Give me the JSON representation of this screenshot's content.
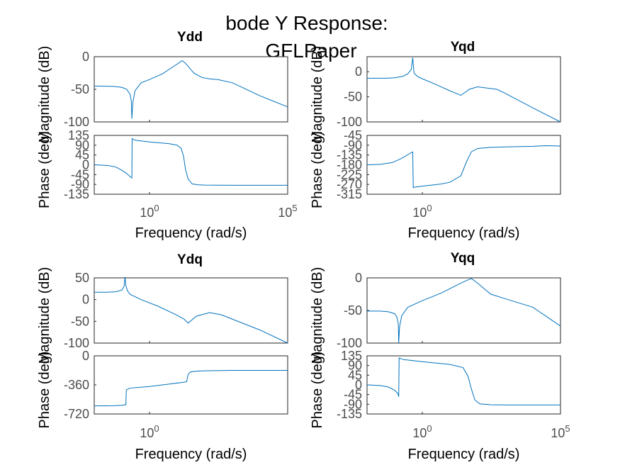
{
  "figure": {
    "title_line1": "bode Y Response:",
    "title_line2": "GFLPaper"
  },
  "chart_data": [
    {
      "type": "line",
      "title": "Ydd",
      "xlabel": "Frequency  (rad/s)",
      "x_scale": "log",
      "xlim": [
        0.01,
        100000
      ],
      "x_ticks": [
        {
          "value": 1,
          "base": "10",
          "exp": "0"
        },
        {
          "value": 100000,
          "base": "10",
          "exp": "5"
        }
      ],
      "line_color": "#0072bd",
      "magnitude": {
        "ylabel": "Magnitude (dB)",
        "ylim": [
          -100,
          0
        ],
        "yticks": [
          0,
          -50,
          -100
        ],
        "ytick_labels": [
          "0",
          "-50",
          "-100"
        ],
        "series": [
          {
            "x": [
              0.01,
              0.05,
              0.1,
              0.15,
              0.2,
              0.22,
              0.23,
              0.25,
              0.3,
              0.5,
              1,
              3,
              8,
              12,
              15,
              20,
              40,
              80,
              150,
              300,
              1000,
              10000,
              100000
            ],
            "y": [
              -45,
              -45.5,
              -47,
              -50,
              -58,
              -68,
              -95,
              -70,
              -52,
              -40,
              -35,
              -26,
              -14,
              -9,
              -6,
              -10,
              -25,
              -32,
              -34,
              -35,
              -40,
              -60,
              -77
            ]
          }
        ]
      },
      "phase": {
        "ylabel": "Phase (deg)",
        "ylim": [
          -135,
          135
        ],
        "yticks": [
          135,
          90,
          45,
          0,
          -45,
          -90,
          -135
        ],
        "ytick_labels": [
          "135",
          "90",
          "45",
          "0",
          "-45",
          "-90",
          "-135"
        ],
        "series": [
          {
            "x": [
              0.01,
              0.03,
              0.06,
              0.1,
              0.15,
              0.2,
              0.23,
              0.235,
              0.3,
              1,
              5,
              10,
              14,
              17,
              20,
              25,
              35,
              60,
              100,
              1000,
              100000
            ],
            "y": [
              0,
              -3,
              -10,
              -25,
              -40,
              -55,
              -60,
              120,
              113,
              105,
              97,
              90,
              75,
              40,
              -20,
              -65,
              -88,
              -92,
              -93,
              -94,
              -94
            ]
          }
        ]
      }
    },
    {
      "type": "line",
      "title": "Yqd",
      "xlabel": "Frequency  (rad/s)",
      "x_scale": "log",
      "xlim": [
        0.01,
        100000
      ],
      "x_ticks": [
        {
          "value": 1,
          "base": "10",
          "exp": "0"
        }
      ],
      "line_color": "#0072bd",
      "magnitude": {
        "ylabel": "Magnitude (dB)",
        "ylim": [
          -100,
          30
        ],
        "yticks": [
          0,
          -50,
          -100
        ],
        "ytick_labels": [
          "0",
          "-50",
          "-100"
        ],
        "series": [
          {
            "x": [
              0.01,
              0.05,
              0.1,
              0.2,
              0.3,
              0.4,
              0.45,
              0.48,
              0.5,
              0.55,
              0.7,
              1,
              3,
              10,
              25,
              50,
              100,
              500,
              1000,
              10000,
              100000
            ],
            "y": [
              -13,
              -13,
              -12,
              -9,
              -4,
              5,
              28,
              10,
              -2,
              -5,
              -10,
              -14,
              -25,
              -38,
              -47,
              -35,
              -30,
              -35,
              -43,
              -72,
              -100
            ]
          }
        ]
      },
      "phase": {
        "ylabel": "Phase (deg)",
        "ylim": [
          -315,
          -45
        ],
        "yticks": [
          -45,
          -90,
          -135,
          -180,
          -225,
          -270,
          -315
        ],
        "ytick_labels": [
          "-45",
          "-90",
          "-135",
          "-180",
          "-225",
          "-270",
          "-315"
        ],
        "series": [
          {
            "x": [
              0.01,
              0.03,
              0.08,
              0.15,
              0.25,
              0.35,
              0.45,
              0.47,
              0.5,
              1,
              5,
              10,
              25,
              40,
              60,
              100,
              300,
              1000,
              10000,
              30000,
              100000
            ],
            "y": [
              -180,
              -178,
              -170,
              -155,
              -140,
              -128,
              -121,
              -285,
              -283,
              -278,
              -268,
              -260,
              -230,
              -165,
              -120,
              -105,
              -100,
              -98,
              -95,
              -92,
              -94
            ]
          }
        ]
      }
    },
    {
      "type": "line",
      "title": "Ydq",
      "xlabel": "Frequency  (rad/s)",
      "x_scale": "log",
      "xlim": [
        0.01,
        100000
      ],
      "x_ticks": [
        {
          "value": 1,
          "base": "10",
          "exp": "0"
        }
      ],
      "line_color": "#0072bd",
      "magnitude": {
        "ylabel": "Magnitude (dB)",
        "ylim": [
          -100,
          50
        ],
        "yticks": [
          50,
          0,
          -50,
          -100
        ],
        "ytick_labels": [
          "50",
          "0",
          "-50",
          "-100"
        ],
        "series": [
          {
            "x": [
              0.01,
              0.03,
              0.06,
              0.1,
              0.12,
              0.13,
              0.14,
              0.16,
              0.2,
              0.5,
              2,
              8,
              18,
              25,
              50,
              150,
              400,
              1000,
              10000,
              100000
            ],
            "y": [
              17,
              17,
              18,
              22,
              30,
              52,
              32,
              20,
              12,
              0,
              -15,
              -33,
              -45,
              -54,
              -38,
              -30,
              -35,
              -45,
              -70,
              -100
            ]
          }
        ]
      },
      "phase": {
        "ylabel": "Phase (deg)",
        "ylim": [
          -720,
          0
        ],
        "yticks": [
          0,
          -360,
          -720
        ],
        "ytick_labels": [
          "0",
          "-360",
          "-720"
        ],
        "series": [
          {
            "x": [
              0.01,
              0.05,
              0.1,
              0.14,
              0.145,
              0.2,
              1,
              5,
              15,
              22,
              25,
              30,
              50,
              100,
              1000,
              10000,
              100000
            ],
            "y": [
              -620,
              -618,
              -612,
              -605,
              -420,
              -400,
              -380,
              -350,
              -330,
              -320,
              -230,
              -200,
              -190,
              -185,
              -180,
              -180,
              -180
            ]
          }
        ]
      }
    },
    {
      "type": "line",
      "title": "Yqq",
      "xlabel": "Frequency  (rad/s)",
      "x_scale": "log",
      "xlim": [
        0.01,
        100000
      ],
      "x_ticks": [
        {
          "value": 1,
          "base": "10",
          "exp": "0"
        },
        {
          "value": 100000,
          "base": "10",
          "exp": "5"
        }
      ],
      "line_color": "#0072bd",
      "magnitude": {
        "ylabel": "Magnitude (dB)",
        "ylim": [
          -100,
          0
        ],
        "yticks": [
          0,
          -50,
          -100
        ],
        "ytick_labels": [
          "0",
          "-50",
          "-100"
        ],
        "series": [
          {
            "x": [
              0.01,
              0.03,
              0.06,
              0.1,
              0.12,
              0.135,
              0.14,
              0.15,
              0.18,
              0.3,
              1,
              5,
              20,
              40,
              60,
              100,
              300,
              1000,
              10000,
              100000
            ],
            "y": [
              -51,
              -51,
              -52,
              -55,
              -60,
              -70,
              -100,
              -75,
              -58,
              -45,
              -35,
              -23,
              -10,
              -4,
              -1,
              -8,
              -25,
              -32,
              -45,
              -74
            ]
          }
        ]
      },
      "phase": {
        "ylabel": "Phase (deg)",
        "ylim": [
          -135,
          135
        ],
        "yticks": [
          135,
          90,
          45,
          0,
          -45,
          -90,
          -135
        ],
        "ytick_labels": [
          "135",
          "90",
          "45",
          "0",
          "-45",
          "-90",
          "-135"
        ],
        "series": [
          {
            "x": [
              0.01,
              0.03,
              0.06,
              0.1,
              0.13,
              0.14,
              0.145,
              0.2,
              1,
              10,
              30,
              45,
              60,
              80,
              120,
              300,
              1000,
              100000
            ],
            "y": [
              0,
              -3,
              -10,
              -25,
              -40,
              -55,
              125,
              118,
              108,
              95,
              80,
              40,
              -20,
              -70,
              -88,
              -92,
              -93,
              -93
            ]
          }
        ]
      }
    }
  ]
}
